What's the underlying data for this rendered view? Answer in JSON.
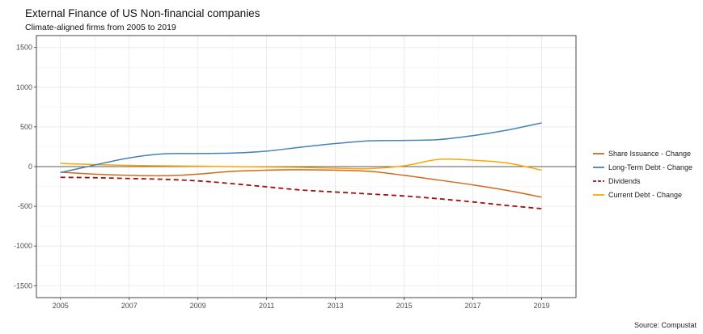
{
  "chart_data": {
    "type": "line",
    "title": "External Finance of US Non-financial companies",
    "subtitle": "Climate-aligned firms from 2005 to 2019",
    "caption": "Source: Compustat",
    "xlabel": "",
    "ylabel": "",
    "xlim": [
      2004.3,
      2020.0
    ],
    "ylim": [
      -1650,
      1650
    ],
    "x_ticks": [
      2005,
      2007,
      2009,
      2011,
      2013,
      2015,
      2017,
      2019
    ],
    "y_ticks": [
      -1500,
      -1000,
      -500,
      0,
      500,
      1000,
      1500
    ],
    "grid": true,
    "legend_position": "right",
    "x": [
      2005,
      2006,
      2007,
      2008,
      2009,
      2010,
      2011,
      2012,
      2013,
      2014,
      2015,
      2016,
      2017,
      2018,
      2019
    ],
    "series": [
      {
        "name": "Share Issuance - Change",
        "color": "#d2691e",
        "dash": "solid",
        "values": [
          -70,
          -95,
          -110,
          -115,
          -95,
          -60,
          -45,
          -40,
          -45,
          -60,
          -110,
          -170,
          -230,
          -300,
          -385
        ]
      },
      {
        "name": "Long-Term Debt - Change",
        "color": "#4682b4",
        "dash": "solid",
        "values": [
          -75,
          20,
          110,
          160,
          165,
          170,
          195,
          245,
          290,
          325,
          330,
          340,
          390,
          460,
          550
        ]
      },
      {
        "name": "Dividends",
        "color": "#a01010",
        "dash": "dashed",
        "values": [
          -135,
          -140,
          -150,
          -160,
          -180,
          -215,
          -255,
          -295,
          -320,
          -345,
          -370,
          -405,
          -445,
          -490,
          -530
        ]
      },
      {
        "name": "Current Debt - Change",
        "color": "#ffa500",
        "dash": "solid",
        "values": [
          40,
          25,
          15,
          10,
          5,
          0,
          -5,
          -10,
          -20,
          -25,
          10,
          90,
          80,
          45,
          -45
        ]
      }
    ]
  }
}
